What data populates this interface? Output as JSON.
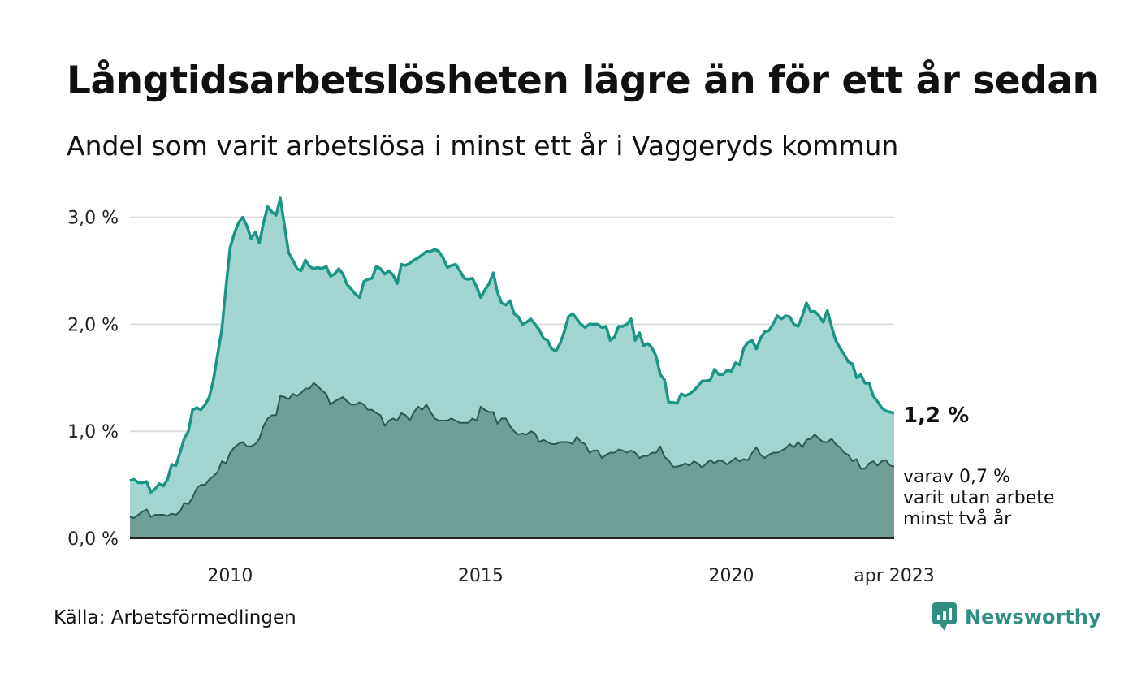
{
  "header": {
    "title": "Långtidsarbetslösheten lägre än för ett år sedan",
    "subtitle": "Andel som varit arbetslösa i minst ett år i Vaggeryds kommun"
  },
  "footer": {
    "source": "Källa: Arbetsförmedlingen",
    "brand": "Newsworthy"
  },
  "colors": {
    "primary_line": "#1a9585",
    "primary_fill": "#a2d5d0",
    "secondary_line": "#2f5a52",
    "secondary_fill": "#6f9e97",
    "grid": "#dddddd",
    "baseline": "#222222",
    "brand": "#2f8f83"
  },
  "chart_data": {
    "type": "area",
    "x_start": "2008-01",
    "x_end": "2023-04",
    "x_ticks": [
      {
        "label": "2010",
        "date": "2010-01"
      },
      {
        "label": "2015",
        "date": "2015-01"
      },
      {
        "label": "2020",
        "date": "2020-01"
      },
      {
        "label": "apr 2023",
        "date": "2023-04"
      }
    ],
    "y_ticks": [
      {
        "label": "0,0 %",
        "value": 0.0
      },
      {
        "label": "1,0 %",
        "value": 1.0
      },
      {
        "label": "2,0 %",
        "value": 2.0
      },
      {
        "label": "3,0 %",
        "value": 3.0
      }
    ],
    "ylim": [
      0,
      3.3
    ],
    "grid": true,
    "annotations": {
      "primary_end": "1,2 %",
      "secondary_end": [
        "varav 0,7 %",
        "varit utan arbete",
        "minst två år"
      ]
    },
    "series": [
      {
        "key": "minst-ett-ar",
        "values": [
          0.54,
          0.55,
          0.52,
          0.52,
          0.53,
          0.43,
          0.46,
          0.51,
          0.49,
          0.55,
          0.69,
          0.68,
          0.8,
          0.93,
          1.0,
          1.2,
          1.22,
          1.2,
          1.25,
          1.32,
          1.48,
          1.72,
          1.95,
          2.35,
          2.72,
          2.85,
          2.95,
          3.0,
          2.92,
          2.8,
          2.86,
          2.76,
          2.95,
          3.1,
          3.05,
          3.02,
          3.18,
          2.92,
          2.67,
          2.6,
          2.52,
          2.5,
          2.6,
          2.54,
          2.52,
          2.53,
          2.52,
          2.54,
          2.45,
          2.47,
          2.52,
          2.47,
          2.37,
          2.33,
          2.28,
          2.25,
          2.4,
          2.42,
          2.43,
          2.54,
          2.52,
          2.47,
          2.5,
          2.46,
          2.38,
          2.56,
          2.55,
          2.57,
          2.6,
          2.62,
          2.65,
          2.68,
          2.68,
          2.7,
          2.68,
          2.62,
          2.53,
          2.55,
          2.56,
          2.5,
          2.43,
          2.42,
          2.43,
          2.35,
          2.25,
          2.32,
          2.38,
          2.48,
          2.3,
          2.2,
          2.18,
          2.22,
          2.1,
          2.07,
          2.0,
          2.02,
          2.05,
          2.0,
          1.95,
          1.87,
          1.85,
          1.77,
          1.75,
          1.82,
          1.93,
          2.07,
          2.1,
          2.05,
          2.0,
          1.97,
          2.0,
          2.0,
          2.0,
          1.97,
          1.98,
          1.85,
          1.88,
          1.98,
          1.98,
          2.0,
          2.05,
          1.85,
          1.92,
          1.8,
          1.82,
          1.78,
          1.7,
          1.53,
          1.48,
          1.27,
          1.27,
          1.26,
          1.35,
          1.33,
          1.35,
          1.38,
          1.42,
          1.47,
          1.47,
          1.48,
          1.58,
          1.53,
          1.53,
          1.57,
          1.56,
          1.64,
          1.62,
          1.78,
          1.83,
          1.85,
          1.77,
          1.87,
          1.93,
          1.94,
          2.0,
          2.08,
          2.05,
          2.08,
          2.07,
          2.0,
          1.98,
          2.08,
          2.2,
          2.12,
          2.12,
          2.08,
          2.02,
          2.13,
          1.98,
          1.85,
          1.78,
          1.72,
          1.65,
          1.63,
          1.5,
          1.53,
          1.45,
          1.45,
          1.33,
          1.28,
          1.22,
          1.19,
          1.18,
          1.17
        ]
      },
      {
        "key": "minst-tva-ar",
        "values": [
          0.2,
          0.19,
          0.22,
          0.25,
          0.27,
          0.2,
          0.22,
          0.22,
          0.22,
          0.21,
          0.23,
          0.22,
          0.25,
          0.33,
          0.32,
          0.38,
          0.47,
          0.5,
          0.5,
          0.55,
          0.58,
          0.62,
          0.72,
          0.7,
          0.8,
          0.85,
          0.88,
          0.9,
          0.86,
          0.86,
          0.88,
          0.93,
          1.05,
          1.12,
          1.15,
          1.15,
          1.33,
          1.32,
          1.3,
          1.35,
          1.33,
          1.36,
          1.4,
          1.4,
          1.45,
          1.42,
          1.38,
          1.35,
          1.25,
          1.28,
          1.3,
          1.32,
          1.28,
          1.25,
          1.25,
          1.27,
          1.25,
          1.2,
          1.2,
          1.17,
          1.15,
          1.05,
          1.1,
          1.12,
          1.1,
          1.17,
          1.15,
          1.1,
          1.18,
          1.23,
          1.2,
          1.25,
          1.18,
          1.12,
          1.1,
          1.1,
          1.1,
          1.12,
          1.1,
          1.08,
          1.08,
          1.08,
          1.12,
          1.1,
          1.23,
          1.2,
          1.18,
          1.18,
          1.07,
          1.12,
          1.12,
          1.05,
          1.0,
          0.97,
          0.98,
          0.97,
          1.0,
          0.98,
          0.9,
          0.92,
          0.9,
          0.88,
          0.88,
          0.9,
          0.9,
          0.9,
          0.88,
          0.95,
          0.9,
          0.88,
          0.8,
          0.82,
          0.82,
          0.75,
          0.78,
          0.8,
          0.8,
          0.83,
          0.82,
          0.8,
          0.82,
          0.8,
          0.75,
          0.77,
          0.77,
          0.8,
          0.8,
          0.86,
          0.76,
          0.73,
          0.67,
          0.67,
          0.68,
          0.7,
          0.68,
          0.72,
          0.7,
          0.66,
          0.7,
          0.73,
          0.7,
          0.73,
          0.72,
          0.69,
          0.72,
          0.75,
          0.72,
          0.74,
          0.73,
          0.8,
          0.85,
          0.78,
          0.75,
          0.78,
          0.8,
          0.8,
          0.82,
          0.84,
          0.88,
          0.85,
          0.9,
          0.85,
          0.92,
          0.93,
          0.97,
          0.93,
          0.9,
          0.9,
          0.93,
          0.88,
          0.85,
          0.8,
          0.78,
          0.72,
          0.74,
          0.65,
          0.65,
          0.7,
          0.72,
          0.68,
          0.72,
          0.73,
          0.68,
          0.67
        ]
      }
    ]
  }
}
